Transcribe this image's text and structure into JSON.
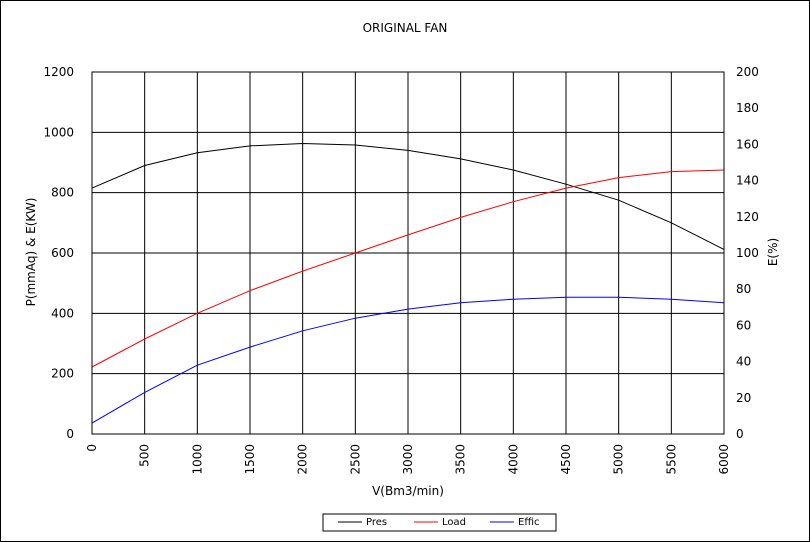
{
  "chart_data": {
    "type": "line",
    "title": "ORIGINAL FAN",
    "xlabel": "V(Bm3/min)",
    "ylabel": "P(mmAq)  &  E(KW)",
    "y2label": "E(%)",
    "xlim": [
      0,
      6000
    ],
    "ylim": [
      0,
      1200
    ],
    "y2lim": [
      0,
      200
    ],
    "grid": true,
    "legend_position": "bottom",
    "x_ticks": [
      "0",
      "500",
      "1000",
      "1500",
      "2000",
      "2500",
      "3000",
      "3500",
      "4000",
      "4500",
      "5000",
      "5500",
      "6000"
    ],
    "y_ticks": [
      "0",
      "200",
      "400",
      "600",
      "800",
      "1000",
      "1200"
    ],
    "y2_ticks": [
      "0",
      "20",
      "40",
      "60",
      "80",
      "100",
      "120",
      "140",
      "160",
      "180",
      "200"
    ],
    "x": [
      0,
      500,
      1000,
      1500,
      2000,
      2500,
      3000,
      3500,
      4000,
      4500,
      5000,
      5500,
      6000
    ],
    "series": [
      {
        "name": "Pres",
        "axis": "left",
        "color": "#000000",
        "values": [
          815,
          890,
          932,
          955,
          963,
          958,
          940,
          912,
          875,
          828,
          775,
          700,
          612
        ]
      },
      {
        "name": "Load",
        "axis": "left",
        "color": "#ff0000",
        "values": [
          222,
          315,
          400,
          475,
          540,
          600,
          660,
          718,
          770,
          815,
          850,
          870,
          875
        ]
      },
      {
        "name": "Effic",
        "axis": "right",
        "color": "#0000ff",
        "values": [
          6,
          23,
          38,
          48,
          57,
          64,
          69,
          72.5,
          74.5,
          75.5,
          75.5,
          74.5,
          72.5
        ]
      }
    ]
  }
}
